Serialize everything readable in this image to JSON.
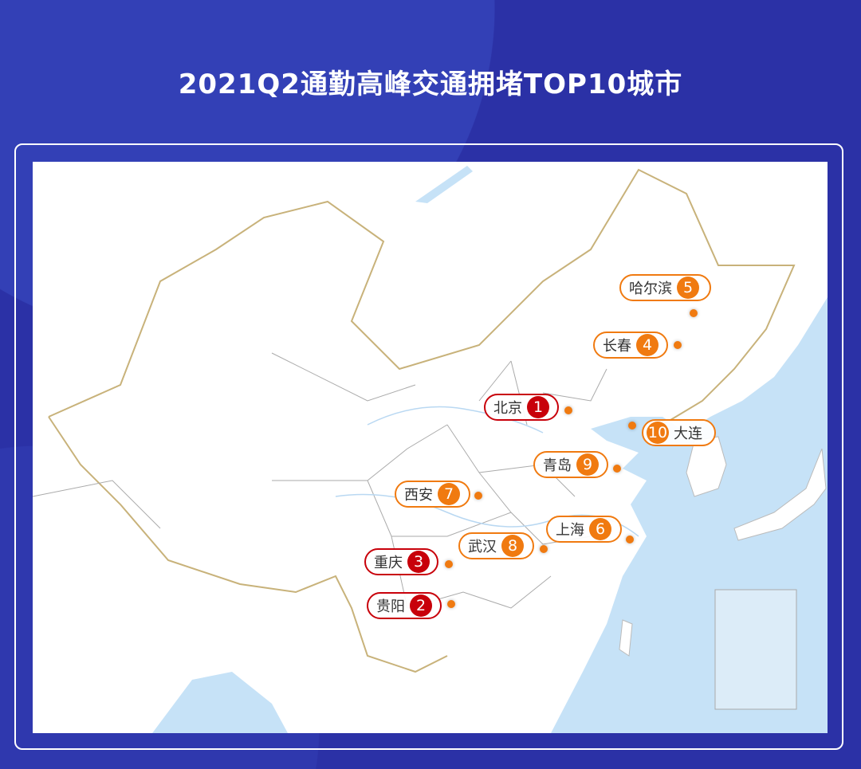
{
  "title": "2021Q2通勤高峰交通拥堵TOP10城市",
  "colors": {
    "background": "#2b31a6",
    "top3": "#c8000a",
    "others": "#f07a10",
    "sea": "#c6e2f7"
  },
  "cities": [
    {
      "name": "北京",
      "rank": "1"
    },
    {
      "name": "贵阳",
      "rank": "2"
    },
    {
      "name": "重庆",
      "rank": "3"
    },
    {
      "name": "长春",
      "rank": "4"
    },
    {
      "name": "哈尔滨",
      "rank": "5"
    },
    {
      "name": "上海",
      "rank": "6"
    },
    {
      "name": "西安",
      "rank": "7"
    },
    {
      "name": "武汉",
      "rank": "8"
    },
    {
      "name": "青岛",
      "rank": "9"
    },
    {
      "name": "大连",
      "rank": "10"
    }
  ]
}
